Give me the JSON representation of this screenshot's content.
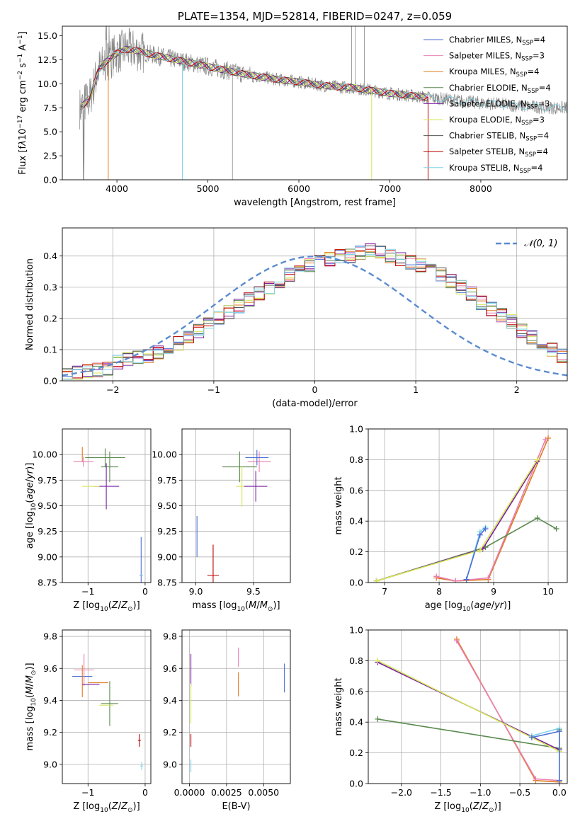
{
  "colors": [
    "#4a6fd4",
    "#e87fb2",
    "#e07b1f",
    "#5a8a4e",
    "#7a1fa2",
    "#d4e854",
    "#555555",
    "#c00000",
    "#7fd4e8"
  ],
  "chart_data": [
    {
      "type": "line",
      "title": "PLATE=1354, MJD=52814, FIBERID=0247, z=0.059",
      "xlabel": "wavelength [Angstrom, rest frame]",
      "ylabel_html": "Flux [f<tspan font-style='italic'>λ</tspan>10<tspan dy='-5' font-size='9'>−17</tspan><tspan dy='5'> erg cm</tspan><tspan dy='-5' font-size='9'>−2</tspan><tspan dy='5'> s</tspan><tspan dy='-5' font-size='9'>−1</tspan><tspan dy='5'> A</tspan><tspan dy='-5' font-size='9'>−1</tspan><tspan dy='5'>]</tspan>",
      "xlim": [
        3400,
        8950
      ],
      "ylim": [
        0,
        16
      ],
      "xticks": [
        4000,
        5000,
        6000,
        7000,
        8000
      ],
      "yticks": [
        0.0,
        2.5,
        5.0,
        7.5,
        10.0,
        12.5,
        15.0
      ],
      "legend_position": "upper right",
      "legend": [
        {
          "label": "Chabrier MILES, N",
          "sub": "SSP",
          "tail": "=4"
        },
        {
          "label": "Salpeter MILES, N",
          "sub": "SSP",
          "tail": "=3"
        },
        {
          "label": "Kroupa MILES, N",
          "sub": "SSP",
          "tail": "=4"
        },
        {
          "label": "Chabrier ELODIE, N",
          "sub": "SSP",
          "tail": "=4"
        },
        {
          "label": "Salpeter ELODIE, N",
          "sub": "SSP",
          "tail": "=3"
        },
        {
          "label": "Kroupa ELODIE, N",
          "sub": "SSP",
          "tail": "=3"
        },
        {
          "label": "Chabrier STELIB, N",
          "sub": "SSP",
          "tail": "=4"
        },
        {
          "label": "Salpeter STELIB, N",
          "sub": "SSP",
          "tail": "=4"
        },
        {
          "label": "Kroupa STELIB, N",
          "sub": "SSP",
          "tail": "=4"
        }
      ],
      "model_curve": {
        "x": [
          3600,
          3700,
          3800,
          3900,
          4000,
          4100,
          4200,
          4400,
          4600,
          4800,
          5000,
          5200,
          5400,
          5600,
          5800,
          6000,
          6200,
          6400,
          6600,
          6800,
          7000,
          7200,
          7400,
          7600,
          7800,
          8000,
          8200,
          8400,
          8600,
          8800
        ],
        "y": [
          7.5,
          8.5,
          11.5,
          12.5,
          13.2,
          13.6,
          13.5,
          13.0,
          12.6,
          12.2,
          11.8,
          11.4,
          11.0,
          10.7,
          10.4,
          10.2,
          9.9,
          9.7,
          9.6,
          9.3,
          9.0,
          8.8,
          8.6,
          8.4,
          8.2,
          8.0,
          7.9,
          7.7,
          7.6,
          7.5
        ]
      }
    },
    {
      "type": "bar",
      "xlabel": "(data-model)/error",
      "ylabel": "Normed distribution",
      "xlim": [
        -2.5,
        2.5
      ],
      "ylim": [
        0,
        0.49
      ],
      "xticks": [
        -2,
        -1,
        0,
        1,
        2
      ],
      "yticks": [
        0.0,
        0.1,
        0.2,
        0.3,
        0.4
      ],
      "legend": [
        {
          "label": "𝒩(0, 1)"
        }
      ],
      "bin_width": 0.1,
      "bin_start": -2.5,
      "histogram_values": [
        0.02,
        0.025,
        0.03,
        0.035,
        0.04,
        0.06,
        0.07,
        0.075,
        0.08,
        0.09,
        0.11,
        0.12,
        0.14,
        0.16,
        0.18,
        0.2,
        0.22,
        0.24,
        0.26,
        0.28,
        0.3,
        0.32,
        0.34,
        0.36,
        0.37,
        0.38,
        0.39,
        0.4,
        0.4,
        0.41,
        0.42,
        0.41,
        0.4,
        0.39,
        0.38,
        0.37,
        0.36,
        0.34,
        0.32,
        0.3,
        0.28,
        0.25,
        0.23,
        0.21,
        0.19,
        0.16,
        0.14,
        0.12,
        0.1,
        0.08
      ]
    },
    {
      "type": "scatter",
      "xlabel_html": "Z [log<tspan dy='4' font-size='9'>10</tspan><tspan dy='-4'>(</tspan><tspan font-style='italic'>Z</tspan>/<tspan font-style='italic'>Z</tspan><tspan dy='4' font-size='9'>⊙</tspan><tspan dy='-4'>)]</tspan>",
      "ylabel_html": "age  [log<tspan dy='4' font-size='9'>10</tspan><tspan dy='-4'>(</tspan><tspan font-style='italic'>age</tspan>/<tspan font-style='italic'>yr</tspan>)]",
      "xlim": [
        -1.45,
        0.1
      ],
      "ylim": [
        8.75,
        10.25
      ],
      "xticks": [
        -1,
        0
      ],
      "yticks": [
        8.75,
        9.0,
        9.25,
        9.5,
        9.75,
        10.0
      ],
      "errorbars": [
        {
          "x": -1.1,
          "y": 10.0,
          "dx": 0.0,
          "dy": 0.15,
          "c": 2
        },
        {
          "x": -1.08,
          "y": 9.93,
          "dx": 0.35,
          "dy": 0.1,
          "c": 1
        },
        {
          "x": -0.7,
          "y": 9.97,
          "dx": 0.7,
          "dy": 0.18,
          "c": 3
        },
        {
          "x": -0.62,
          "y": 9.88,
          "dx": 0.3,
          "dy": 0.3,
          "c": 3
        },
        {
          "x": -0.68,
          "y": 9.69,
          "dx": 0.45,
          "dy": 0.45,
          "c": 4
        },
        {
          "x": -0.95,
          "y": 9.69,
          "dx": 0.3,
          "dy": 0.0,
          "c": 5
        },
        {
          "x": -0.07,
          "y": 8.82,
          "dx": 0.05,
          "dy": 0.75,
          "c": 0
        },
        {
          "x": -0.06,
          "y": 8.82,
          "dx": 0.05,
          "dy": 0.0,
          "c": 8
        }
      ]
    },
    {
      "type": "scatter",
      "xlabel_html": "mass [log<tspan dy='4' font-size='9'>10</tspan><tspan dy='-4'>(</tspan><tspan font-style='italic'>M</tspan>/<tspan font-style='italic'>M</tspan><tspan dy='4' font-size='9'>⊙</tspan><tspan dy='-4'>)]</tspan>",
      "xlim": [
        8.88,
        9.82
      ],
      "ylim": [
        8.75,
        10.25
      ],
      "xticks": [
        9.0,
        9.5
      ],
      "yticks": [
        8.75,
        9.0,
        9.25,
        9.5,
        9.75,
        10.0
      ],
      "errorbars": [
        {
          "x": 9.38,
          "y": 9.88,
          "dx": 0.3,
          "dy": 0.3,
          "c": 3
        },
        {
          "x": 9.4,
          "y": 9.69,
          "dx": 0.1,
          "dy": 0.4,
          "c": 5
        },
        {
          "x": 9.52,
          "y": 9.69,
          "dx": 0.2,
          "dy": 0.3,
          "c": 4
        },
        {
          "x": 9.55,
          "y": 9.93,
          "dx": 0.2,
          "dy": 0.2,
          "c": 1
        },
        {
          "x": 9.53,
          "y": 9.97,
          "dx": 0.2,
          "dy": 0.15,
          "c": 0
        },
        {
          "x": 9.01,
          "y": 9.2,
          "dx": 0.0,
          "dy": 0.4,
          "c": 0
        },
        {
          "x": 9.15,
          "y": 8.82,
          "dx": 0.1,
          "dy": 0.6,
          "c": 7
        }
      ]
    },
    {
      "type": "line",
      "xlabel_html": "age  [log<tspan dy='4' font-size='9'>10</tspan><tspan dy='-4'>(</tspan><tspan font-style='italic'>age</tspan>/<tspan font-style='italic'>yr</tspan>)]",
      "ylabel": "mass weight",
      "xlim": [
        6.7,
        10.35
      ],
      "ylim": [
        0,
        1.0
      ],
      "xticks": [
        7,
        8,
        9,
        10
      ],
      "yticks": [
        0.0,
        0.2,
        0.4,
        0.6,
        0.8,
        1.0
      ],
      "series": [
        {
          "c": 2,
          "x": [
            7.95,
            8.3,
            8.9,
            10.0
          ],
          "y": [
            0.03,
            0.01,
            0.02,
            0.94
          ]
        },
        {
          "c": 1,
          "x": [
            7.95,
            8.3,
            8.9,
            9.95
          ],
          "y": [
            0.04,
            0.01,
            0.03,
            0.93
          ]
        },
        {
          "c": 3,
          "x": [
            6.85,
            8.85,
            9.8,
            10.15
          ],
          "y": [
            0.01,
            0.23,
            0.42,
            0.35
          ]
        },
        {
          "c": 4,
          "x": [
            6.85,
            8.8,
            9.8
          ],
          "y": [
            0.01,
            0.22,
            0.79
          ]
        },
        {
          "c": 5,
          "x": [
            6.85,
            8.75,
            9.8
          ],
          "y": [
            0.01,
            0.21,
            0.8
          ]
        },
        {
          "c": 8,
          "x": [
            8.5,
            8.75,
            8.85
          ],
          "y": [
            0.02,
            0.33,
            0.36
          ]
        },
        {
          "c": 0,
          "x": [
            8.5,
            8.75,
            8.85
          ],
          "y": [
            0.02,
            0.31,
            0.35
          ]
        }
      ]
    },
    {
      "type": "scatter",
      "xlabel_html": "Z [log<tspan dy='4' font-size='9'>10</tspan><tspan dy='-4'>(</tspan><tspan font-style='italic'>Z</tspan>/<tspan font-style='italic'>Z</tspan><tspan dy='4' font-size='9'>⊙</tspan><tspan dy='-4'>)]</tspan>",
      "ylabel_html": "mass [log<tspan dy='4' font-size='9'>10</tspan><tspan dy='-4'>(</tspan><tspan font-style='italic'>M</tspan>/<tspan font-style='italic'>M</tspan><tspan dy='4' font-size='9'>⊙</tspan><tspan dy='-4'>)]</tspan>",
      "xlim": [
        -1.45,
        0.1
      ],
      "ylim": [
        8.88,
        9.84
      ],
      "xticks": [
        -1,
        0
      ],
      "yticks": [
        9.0,
        9.2,
        9.4,
        9.6,
        9.8
      ],
      "errorbars": [
        {
          "x": -1.1,
          "y": 9.55,
          "dx": 0.35,
          "dy": 0.0,
          "c": 0
        },
        {
          "x": -1.07,
          "y": 9.59,
          "dx": 0.35,
          "dy": 0.2,
          "c": 1
        },
        {
          "x": -1.1,
          "y": 9.52,
          "dx": 0.0,
          "dy": 0.2,
          "c": 2
        },
        {
          "x": -0.95,
          "y": 9.5,
          "dx": 0.3,
          "dy": 0.0,
          "c": 4
        },
        {
          "x": -0.82,
          "y": 9.51,
          "dx": 0.35,
          "dy": 0.0,
          "c": 2
        },
        {
          "x": -0.62,
          "y": 9.38,
          "dx": 0.3,
          "dy": 0.28,
          "c": 3
        },
        {
          "x": -0.68,
          "y": 9.37,
          "dx": 0.25,
          "dy": 0.0,
          "c": 5
        },
        {
          "x": -0.1,
          "y": 9.15,
          "dx": 0.05,
          "dy": 0.08,
          "c": 7
        },
        {
          "x": -0.06,
          "y": 8.99,
          "dx": 0.05,
          "dy": 0.05,
          "c": 8
        }
      ]
    },
    {
      "type": "scatter",
      "xlabel": "E(B-V)",
      "xlim": [
        -0.0005,
        0.0068
      ],
      "ylim": [
        8.88,
        9.84
      ],
      "xticks": [
        0.0,
        0.0025,
        0.005
      ],
      "xticklabels": [
        "0.0000",
        "0.0025",
        "0.0050"
      ],
      "yticks": [
        9.0,
        9.2,
        9.4,
        9.6,
        9.8
      ],
      "errorbars": [
        {
          "x": 0.0001,
          "y": 9.59,
          "dx": 0.0,
          "dy": 0.2,
          "c": 4
        },
        {
          "x": 0.0001,
          "y": 9.38,
          "dx": 0.0,
          "dy": 0.25,
          "c": 5
        },
        {
          "x": 0.0001,
          "y": 9.15,
          "dx": 0.0,
          "dy": 0.08,
          "c": 7
        },
        {
          "x": 0.0001,
          "y": 8.99,
          "dx": 0.0,
          "dy": 0.08,
          "c": 8
        },
        {
          "x": 0.0033,
          "y": 9.5,
          "dx": 0.0,
          "dy": 0.15,
          "c": 2
        },
        {
          "x": 0.0033,
          "y": 9.67,
          "dx": 0.0,
          "dy": 0.12,
          "c": 1
        },
        {
          "x": 0.0064,
          "y": 9.54,
          "dx": 0.0,
          "dy": 0.18,
          "c": 0
        }
      ]
    },
    {
      "type": "line",
      "xlabel_html": "Z [log<tspan dy='4' font-size='9'>10</tspan><tspan dy='-4'>(</tspan><tspan font-style='italic'>Z</tspan>/<tspan font-style='italic'>Z</tspan><tspan dy='4' font-size='9'>⊙</tspan><tspan dy='-4'>)]</tspan>",
      "ylabel": "mass weight",
      "xlim": [
        -2.42,
        0.1
      ],
      "ylim": [
        0,
        1.0
      ],
      "xticks": [
        -2.0,
        -1.5,
        -1.0,
        -0.5,
        0.0
      ],
      "xticklabels": [
        "−2.0",
        "−1.5",
        "−1.0",
        "−0.5",
        "0.0"
      ],
      "yticks": [
        0.0,
        0.2,
        0.4,
        0.6,
        0.8,
        1.0
      ],
      "series": [
        {
          "c": 2,
          "x": [
            -1.3,
            -0.3,
            0.0
          ],
          "y": [
            0.94,
            0.02,
            0.01
          ]
        },
        {
          "c": 1,
          "x": [
            -1.3,
            -0.3,
            0.0
          ],
          "y": [
            0.93,
            0.03,
            0.02
          ]
        },
        {
          "c": 3,
          "x": [
            -2.3,
            0.0,
            0.0
          ],
          "y": [
            0.42,
            0.23,
            0.35
          ]
        },
        {
          "c": 4,
          "x": [
            -2.3,
            0.0
          ],
          "y": [
            0.79,
            0.22
          ]
        },
        {
          "c": 5,
          "x": [
            -2.3,
            0.0
          ],
          "y": [
            0.8,
            0.21
          ]
        },
        {
          "c": 8,
          "x": [
            -0.35,
            0.0,
            0.0
          ],
          "y": [
            0.31,
            0.36,
            0.02
          ]
        },
        {
          "c": 0,
          "x": [
            -0.35,
            0.0,
            0.0
          ],
          "y": [
            0.3,
            0.34,
            0.02
          ]
        }
      ]
    }
  ]
}
